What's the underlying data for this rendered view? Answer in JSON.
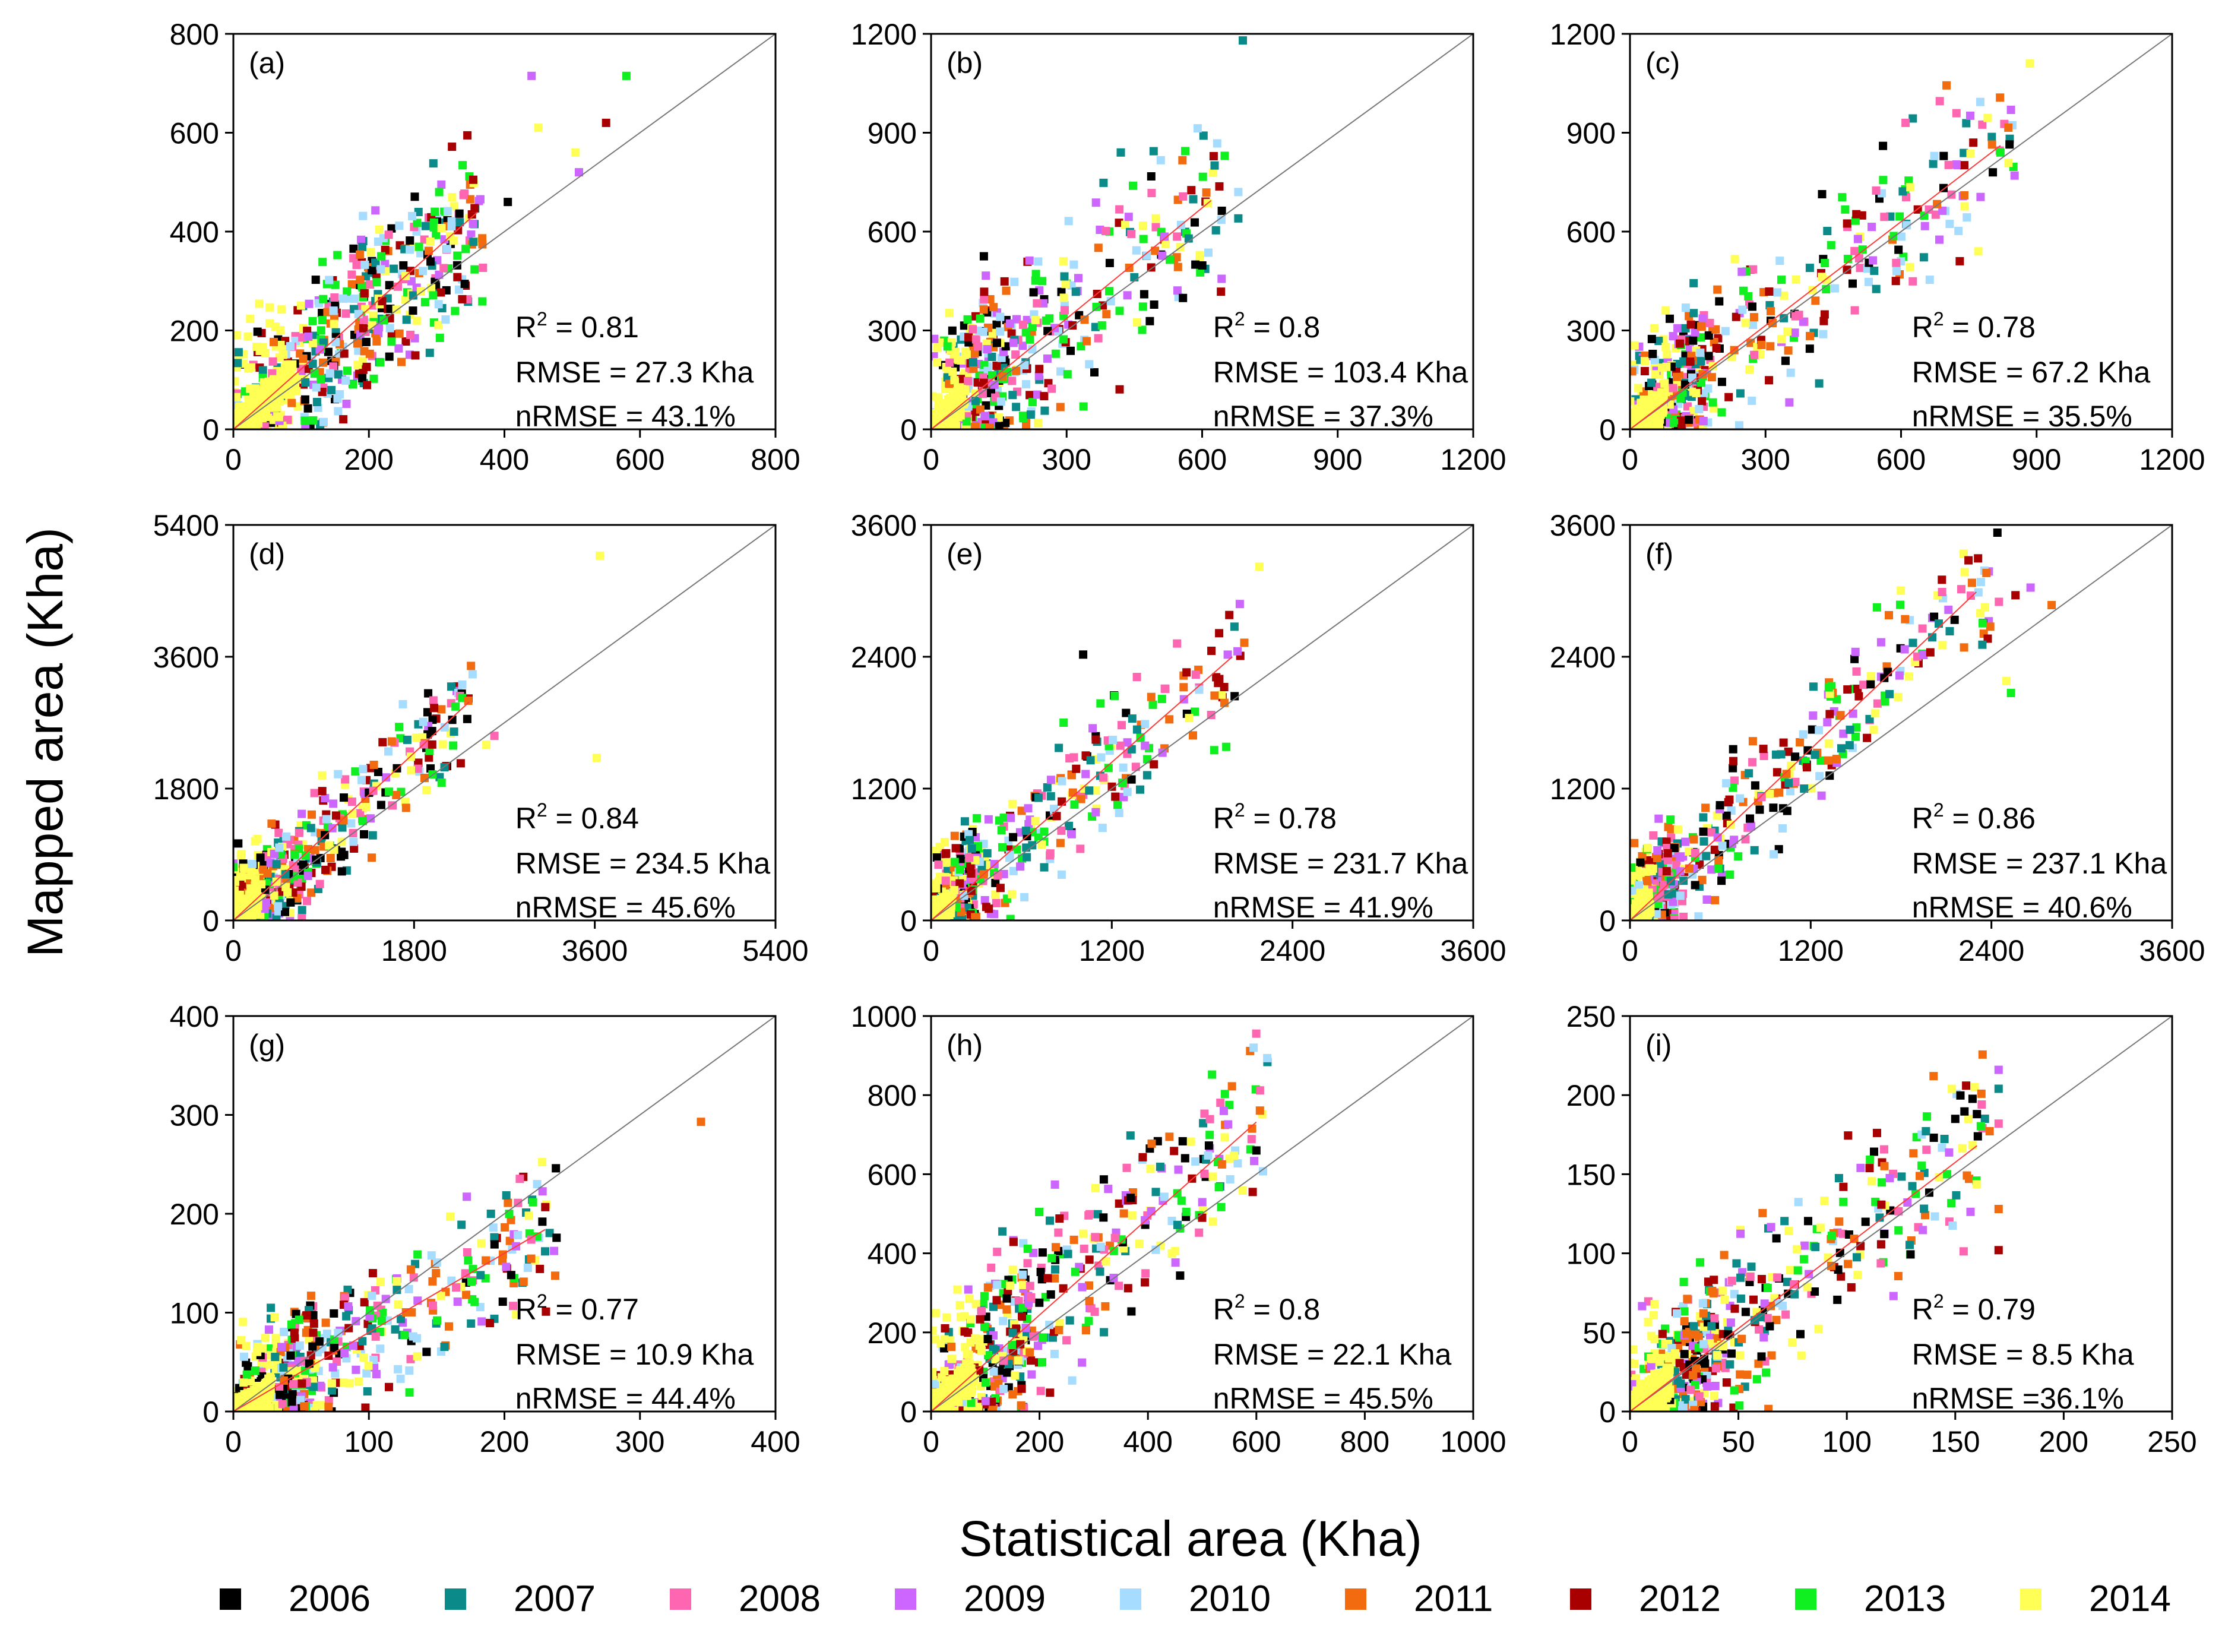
{
  "figure": {
    "ylabel": "Mapped area (Kha)",
    "xlabel": "Statistical area (Kha)"
  },
  "legend": {
    "items": [
      {
        "label": "2006",
        "color": "#000000"
      },
      {
        "label": "2007",
        "color": "#0b8a8a"
      },
      {
        "label": "2008",
        "color": "#ff66b2"
      },
      {
        "label": "2009",
        "color": "#cc66ff"
      },
      {
        "label": "2010",
        "color": "#a6dcff"
      },
      {
        "label": "2011",
        "color": "#f26b0f"
      },
      {
        "label": "2012",
        "color": "#a80000"
      },
      {
        "label": "2013",
        "color": "#10f020"
      },
      {
        "label": "2014",
        "color": "#ffff55"
      }
    ]
  },
  "chart_data": [
    {
      "id": "a",
      "type": "scatter",
      "label": "(a)",
      "max": 800,
      "ticks": [
        0,
        200,
        400,
        600,
        800
      ],
      "slope": 1.22,
      "fit_end": 360,
      "dense": 190,
      "spread": 85,
      "scale": 290,
      "stats": {
        "r2": "0.81",
        "rmse": "RMSE = 27.3 Kha",
        "nrmse": "nRMSE = 43.1%"
      },
      "stats_pos": "right",
      "outliers": [
        [
          440,
          715,
          3
        ],
        [
          580,
          715,
          7
        ],
        [
          550,
          620,
          6
        ],
        [
          450,
          610,
          8
        ],
        [
          505,
          560,
          8
        ],
        [
          510,
          520,
          3
        ],
        [
          405,
          460,
          0
        ]
      ]
    },
    {
      "id": "b",
      "type": "scatter",
      "label": "(b)",
      "max": 1200,
      "ticks": [
        0,
        300,
        600,
        900,
        1200
      ],
      "slope": 1.12,
      "fit_end": 620,
      "dense": 150,
      "spread": 140,
      "scale": 300,
      "stats": {
        "r2": "0.8",
        "rmse": "RMSE = 103.4 Kha",
        "nrmse": "nRMSE = 37.3%"
      },
      "stats_pos": "right",
      "outliers": [
        [
          690,
          1180,
          1
        ],
        [
          680,
          720,
          4
        ],
        [
          680,
          640,
          1
        ],
        [
          650,
          830,
          7
        ],
        [
          420,
          840,
          1
        ]
      ]
    },
    {
      "id": "c",
      "type": "scatter",
      "label": "(c)",
      "max": 1200,
      "ticks": [
        0,
        300,
        600,
        900,
        1200
      ],
      "slope": 1.05,
      "fit_end": 820,
      "dense": 160,
      "spread": 115,
      "scale": 300,
      "stats": {
        "r2": "0.78",
        "rmse": "RMSE = 67.2 Kha",
        "nrmse": "nRMSE = 35.5%"
      },
      "stats_pos": "right",
      "outliers": [
        [
          885,
          1110,
          8
        ],
        [
          610,
          930,
          2
        ],
        [
          560,
          860,
          0
        ],
        [
          760,
          870,
          6
        ],
        [
          820,
          840,
          7
        ],
        [
          740,
          710,
          5
        ],
        [
          730,
          510,
          6
        ],
        [
          590,
          480,
          4
        ]
      ]
    },
    {
      "id": "d",
      "type": "scatter",
      "label": "(d)",
      "max": 5400,
      "ticks": [
        0,
        1800,
        3600,
        5400
      ],
      "slope": 1.27,
      "fit_end": 2350,
      "dense": 520,
      "spread": 370,
      "scale": 780,
      "stats": {
        "r2": "0.84",
        "rmse": "RMSE = 234.5 Kha",
        "nrmse": "nRMSE = 45.6%"
      },
      "stats_pos": "right",
      "outliers": [
        [
          3650,
          4980,
          8
        ],
        [
          2280,
          3220,
          4
        ],
        [
          3620,
          2220,
          8
        ],
        [
          2600,
          2520,
          2
        ],
        [
          2520,
          2400,
          8
        ],
        [
          2000,
          2900,
          6
        ],
        [
          2330,
          2750,
          0
        ],
        [
          2340,
          3000,
          5
        ]
      ]
    },
    {
      "id": "e",
      "type": "scatter",
      "label": "(e)",
      "max": 3600,
      "ticks": [
        0,
        1200,
        2400,
        3600
      ],
      "slope": 1.2,
      "fit_end": 2000,
      "dense": 280,
      "spread": 270,
      "scale": 650,
      "stats": {
        "r2": "0.78",
        "rmse": "RMSE = 231.7 Kha",
        "nrmse": "nRMSE = 41.9%"
      },
      "stats_pos": "right",
      "outliers": [
        [
          2180,
          3220,
          8
        ],
        [
          2050,
          2880,
          3
        ],
        [
          1980,
          2780,
          6
        ],
        [
          1010,
          2420,
          0
        ],
        [
          880,
          1800,
          7
        ],
        [
          1880,
          1550,
          7
        ],
        [
          1960,
          1580,
          7
        ],
        [
          1780,
          2100,
          4
        ],
        [
          1860,
          1870,
          2
        ]
      ]
    },
    {
      "id": "f",
      "type": "scatter",
      "label": "(f)",
      "max": 3600,
      "ticks": [
        0,
        1200,
        2400,
        3600
      ],
      "slope": 1.3,
      "fit_end": 2300,
      "dense": 300,
      "spread": 260,
      "scale": 650,
      "stats": {
        "r2": "0.86",
        "rmse": "RMSE = 237.1 Kha",
        "nrmse": "nRMSE = 40.6%"
      },
      "stats_pos": "right",
      "outliers": [
        [
          2440,
          3530,
          0
        ],
        [
          2330,
          3080,
          4
        ],
        [
          2660,
          3030,
          3
        ],
        [
          2560,
          2960,
          6
        ],
        [
          2800,
          2870,
          5
        ],
        [
          1640,
          2850,
          7
        ],
        [
          2340,
          2510,
          1
        ],
        [
          2500,
          2180,
          8
        ],
        [
          2530,
          2070,
          7
        ],
        [
          2450,
          2900,
          2
        ]
      ]
    },
    {
      "id": "g",
      "type": "scatter",
      "label": "(g)",
      "max": 400,
      "ticks": [
        0,
        100,
        200,
        300,
        400
      ],
      "slope": 0.8,
      "fit_end": 230,
      "dense": 60,
      "spread": 32,
      "scale": 75,
      "stats": {
        "r2": "0.77",
        "rmse": "RMSE = 10.9 Kha",
        "nrmse": "nRMSE = 44.4%"
      },
      "stats_pos": "right",
      "outliers": [
        [
          345,
          293,
          5
        ],
        [
          238,
          246,
          0
        ],
        [
          228,
          192,
          0
        ],
        [
          205,
          138,
          0
        ],
        [
          230,
          162,
          1
        ],
        [
          190,
          200,
          1
        ],
        [
          210,
          211,
          2
        ]
      ]
    },
    {
      "id": "h",
      "type": "scatter",
      "label": "(h)",
      "max": 1000,
      "ticks": [
        0,
        200,
        400,
        600,
        800,
        1000
      ],
      "slope": 1.22,
      "fit_end": 600,
      "dense": 170,
      "spread": 105,
      "scale": 210,
      "stats": {
        "r2": "0.8",
        "rmse": "RMSE = 22.1 Kha",
        "nrmse": "nRMSE = 45.5%"
      },
      "stats_pos": "right",
      "outliers": [
        [
          595,
          920,
          4
        ],
        [
          550,
          775,
          7
        ],
        [
          600,
          660,
          0
        ],
        [
          500,
          490,
          6
        ],
        [
          520,
          480,
          8
        ],
        [
          540,
          760,
          3
        ]
      ]
    },
    {
      "id": "i",
      "type": "scatter",
      "label": "(i)",
      "max": 250,
      "ticks": [
        0,
        50,
        100,
        150,
        200,
        250
      ],
      "slope": 1.05,
      "fit_end": 160,
      "dense": 40,
      "spread": 26,
      "scale": 55,
      "stats": {
        "r2": "0.79",
        "rmse": "RMSE = 8.5 Kha",
        "nrmse": "nRMSE =36.1%"
      },
      "stats_pos": "right",
      "outliers": [
        [
          170,
          216,
          3
        ],
        [
          170,
          204,
          1
        ],
        [
          140,
          212,
          5
        ],
        [
          155,
          206,
          6
        ],
        [
          160,
          188,
          0
        ],
        [
          170,
          182,
          2
        ],
        [
          170,
          128,
          5
        ],
        [
          170,
          102,
          6
        ],
        [
          150,
          185,
          0
        ]
      ]
    }
  ]
}
